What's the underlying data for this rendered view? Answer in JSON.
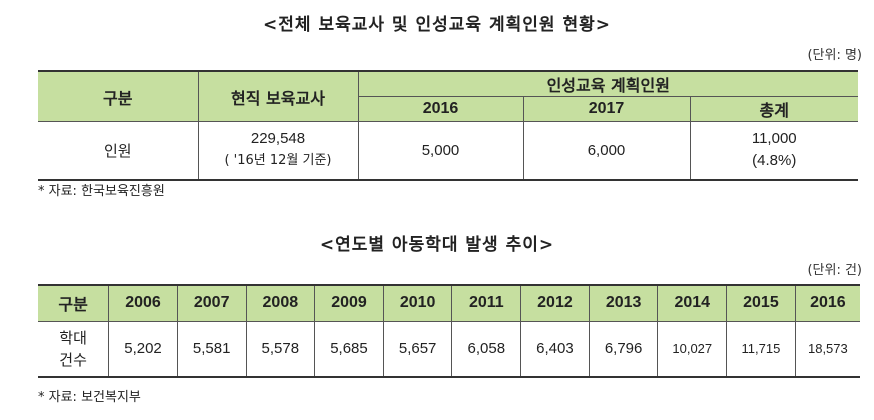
{
  "table1": {
    "title": "<전체 보육교사 및 인성교육 계획인원 현황>",
    "unit": "(단위: 명)",
    "headers": {
      "category": "구분",
      "current_teachers": "현직 보육교사",
      "planned_group": "인성교육 계획인원",
      "y2016": "2016",
      "y2017": "2017",
      "total": "총계"
    },
    "row": {
      "label": "인원",
      "current_value": "229,548",
      "current_note": "( '16년 12월 기준)",
      "v2016": "5,000",
      "v2017": "6,000",
      "total_value": "11,000",
      "total_pct": "(4.8%)"
    },
    "source": "* 자료: 한국보육진흥원"
  },
  "table2": {
    "title": "<연도별 아동학대 발생 추이>",
    "unit": "(단위: 건)",
    "header_label": "구분",
    "years": [
      "2006",
      "2007",
      "2008",
      "2009",
      "2010",
      "2011",
      "2012",
      "2013",
      "2014",
      "2015",
      "2016"
    ],
    "row_label_line1": "학대",
    "row_label_line2": "건수",
    "values": [
      "5,202",
      "5,581",
      "5,578",
      "5,685",
      "5,657",
      "6,058",
      "6,403",
      "6,796",
      "10,027",
      "11,715",
      "18,573"
    ],
    "source": "* 자료: 보건복지부"
  }
}
